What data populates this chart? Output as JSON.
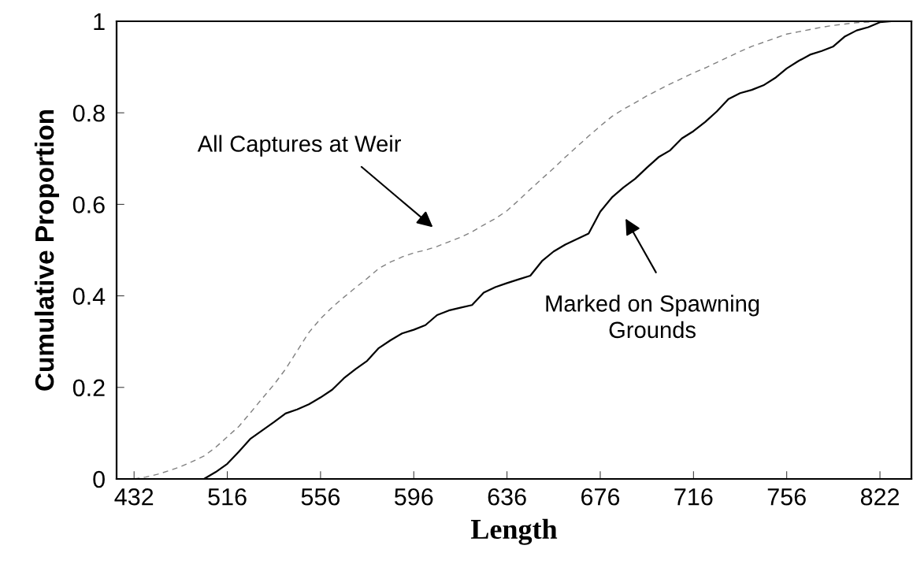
{
  "chart_data": {
    "type": "line",
    "xlabel": "Length",
    "ylabel": "Cumulative Proportion",
    "categories": [
      null,
      "432",
      null,
      null,
      null,
      null,
      null,
      null,
      null,
      "516",
      null,
      null,
      null,
      null,
      null,
      null,
      null,
      "556",
      null,
      null,
      null,
      null,
      null,
      null,
      null,
      "596",
      null,
      null,
      null,
      null,
      null,
      null,
      null,
      "636",
      null,
      null,
      null,
      null,
      null,
      null,
      null,
      "676",
      null,
      null,
      null,
      null,
      null,
      null,
      null,
      "716",
      null,
      null,
      null,
      null,
      null,
      null,
      null,
      "756",
      null,
      null,
      null,
      null,
      null,
      null,
      null,
      "822",
      null,
      null
    ],
    "series": [
      {
        "color": "#808080",
        "line_style": "dashed",
        "values": [
          null,
          0.0,
          0.004,
          0.01,
          0.018,
          0.027,
          0.038,
          0.05,
          0.069,
          0.092,
          0.115,
          0.145,
          0.176,
          0.206,
          0.24,
          0.28,
          0.32,
          0.35,
          0.375,
          0.397,
          0.418,
          0.438,
          0.46,
          0.474,
          0.485,
          0.494,
          0.5,
          0.508,
          0.518,
          0.528,
          0.54,
          0.555,
          0.569,
          0.586,
          0.609,
          0.633,
          0.656,
          0.679,
          0.703,
          0.726,
          0.749,
          0.771,
          0.792,
          0.808,
          0.822,
          0.837,
          0.85,
          0.863,
          0.875,
          0.887,
          0.898,
          0.91,
          0.922,
          0.934,
          0.945,
          0.954,
          0.963,
          0.972,
          0.977,
          0.982,
          0.987,
          0.991,
          0.994,
          0.997,
          0.998,
          1.0,
          1.0,
          null
        ]
      },
      {
        "color": "#000000",
        "line_style": "solid",
        "values": [
          null,
          null,
          0.0,
          0.0,
          0.0,
          0.0,
          0.0,
          0.0,
          0.015,
          0.033,
          0.06,
          0.088,
          0.106,
          0.124,
          0.143,
          0.152,
          0.163,
          0.178,
          0.195,
          0.22,
          0.24,
          0.258,
          0.286,
          0.303,
          0.318,
          0.326,
          0.336,
          0.358,
          0.368,
          0.374,
          0.38,
          0.407,
          0.419,
          0.428,
          0.436,
          0.444,
          0.476,
          0.497,
          0.512,
          0.524,
          0.536,
          0.584,
          0.615,
          0.637,
          0.656,
          0.68,
          0.703,
          0.718,
          0.744,
          0.76,
          0.78,
          0.803,
          0.83,
          0.843,
          0.85,
          0.86,
          0.876,
          0.897,
          0.913,
          0.927,
          0.935,
          0.945,
          0.967,
          0.98,
          0.987,
          0.998,
          1.0,
          1.0
        ]
      }
    ],
    "ylim": [
      0,
      1
    ],
    "yticks": [
      0,
      0.2,
      0.4,
      0.6,
      0.8,
      1
    ],
    "annotations": [
      "All Captures at Weir",
      "Marked on Spawning\nGrounds"
    ],
    "grid": false,
    "legend": false,
    "marker": "none"
  }
}
